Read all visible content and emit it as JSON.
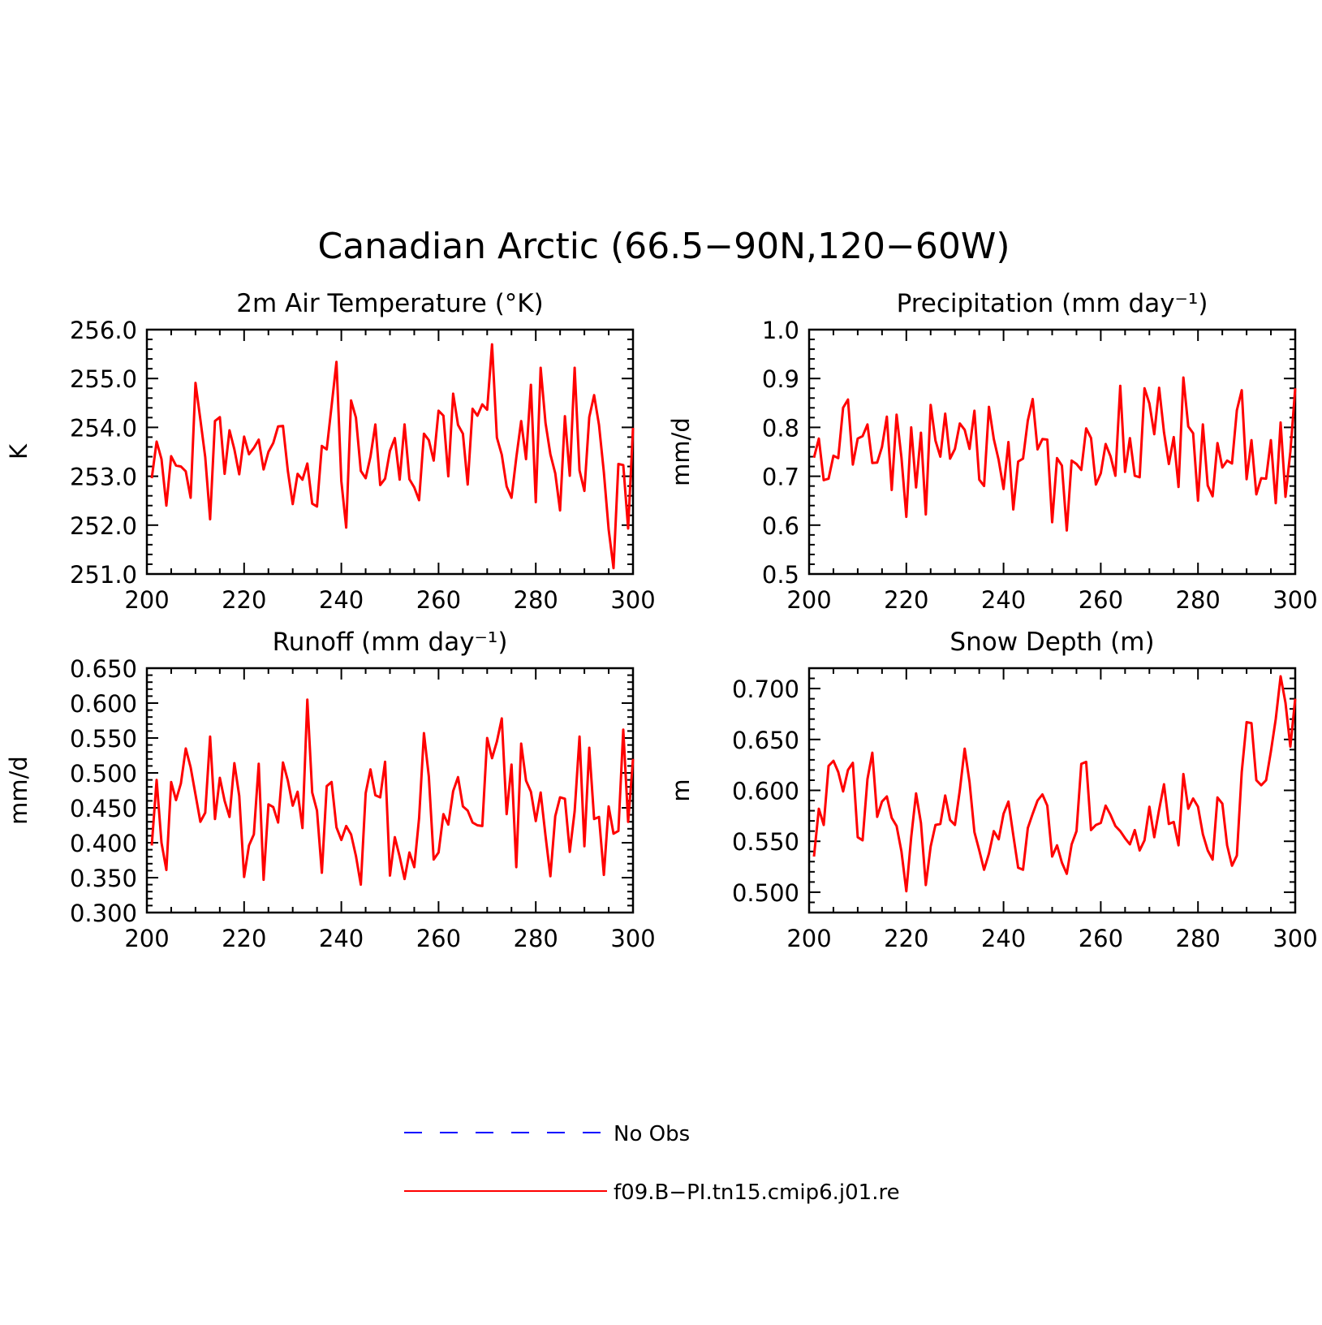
{
  "figure_title": "Canadian Arctic (66.5−90N,120−60W)",
  "colors": {
    "model": "#ff0000",
    "obs": "#0000ff",
    "axis": "#000000"
  },
  "legend": {
    "obs_label": "No Obs",
    "model_label": "f09.B−PI.tn15.cmip6.j01.re"
  },
  "chart_data": [
    {
      "type": "line",
      "title": "2m Air Temperature (°K)",
      "xlabel": "",
      "ylabel": "K",
      "xlim": [
        200,
        300
      ],
      "ylim": [
        251.0,
        256.0
      ],
      "x_ticks": [
        "200",
        "220",
        "240",
        "260",
        "280",
        "300"
      ],
      "y_ticks": [
        "251.0",
        "252.0",
        "253.0",
        "254.0",
        "255.0",
        "256.0"
      ],
      "x_start": 201,
      "series": [
        {
          "name": "f09.B−PI.tn15.cmip6.j01.re",
          "values": [
            252.96,
            253.71,
            253.35,
            252.4,
            253.41,
            253.22,
            253.2,
            253.1,
            252.56,
            254.91,
            254.16,
            253.39,
            252.12,
            254.13,
            254.21,
            253.05,
            253.94,
            253.55,
            253.04,
            253.81,
            253.45,
            253.58,
            253.75,
            253.14,
            253.5,
            253.68,
            254.02,
            254.03,
            253.11,
            252.43,
            253.05,
            252.93,
            253.26,
            252.44,
            252.38,
            253.62,
            253.55,
            254.44,
            255.34,
            252.9,
            251.95,
            254.55,
            254.2,
            253.11,
            252.96,
            253.4,
            254.06,
            252.82,
            252.95,
            253.52,
            253.78,
            252.93,
            254.06,
            252.94,
            252.77,
            252.51,
            253.87,
            253.74,
            253.32,
            254.34,
            254.24,
            253.0,
            254.69,
            254.05,
            253.87,
            252.83,
            254.38,
            254.24,
            254.47,
            254.36,
            255.7,
            253.79,
            253.44,
            252.79,
            252.56,
            253.38,
            254.13,
            253.35,
            254.87,
            252.47,
            255.22,
            254.09,
            253.45,
            253.06,
            252.3,
            254.23,
            253.01,
            255.22,
            253.12,
            252.7,
            254.21,
            254.66,
            254.05,
            253.08,
            251.91,
            251.12,
            253.25,
            253.23,
            251.93,
            253.99
          ]
        }
      ]
    },
    {
      "type": "line",
      "title": "Precipitation (mm day⁻¹)",
      "xlabel": "",
      "ylabel": "mm/d",
      "xlim": [
        200,
        300
      ],
      "ylim": [
        0.5,
        1.0
      ],
      "x_ticks": [
        "200",
        "220",
        "240",
        "260",
        "280",
        "300"
      ],
      "y_ticks": [
        "0.5",
        "0.6",
        "0.7",
        "0.8",
        "0.9",
        "1.0"
      ],
      "x_start": 201,
      "series": [
        {
          "name": "f09.B−PI.tn15.cmip6.j01.re",
          "values": [
            0.738,
            0.777,
            0.692,
            0.695,
            0.742,
            0.737,
            0.84,
            0.857,
            0.724,
            0.777,
            0.782,
            0.806,
            0.727,
            0.728,
            0.76,
            0.822,
            0.672,
            0.826,
            0.738,
            0.617,
            0.8,
            0.677,
            0.789,
            0.622,
            0.846,
            0.773,
            0.74,
            0.828,
            0.736,
            0.756,
            0.808,
            0.795,
            0.756,
            0.834,
            0.693,
            0.68,
            0.842,
            0.776,
            0.733,
            0.674,
            0.77,
            0.632,
            0.73,
            0.736,
            0.814,
            0.858,
            0.755,
            0.776,
            0.775,
            0.606,
            0.737,
            0.722,
            0.589,
            0.732,
            0.725,
            0.713,
            0.798,
            0.778,
            0.683,
            0.706,
            0.766,
            0.741,
            0.701,
            0.885,
            0.709,
            0.778,
            0.701,
            0.698,
            0.88,
            0.849,
            0.786,
            0.881,
            0.79,
            0.725,
            0.78,
            0.678,
            0.902,
            0.802,
            0.788,
            0.65,
            0.806,
            0.681,
            0.659,
            0.768,
            0.718,
            0.732,
            0.726,
            0.835,
            0.876,
            0.694,
            0.774,
            0.663,
            0.696,
            0.695,
            0.774,
            0.645,
            0.81,
            0.658,
            0.75,
            0.88
          ]
        }
      ]
    },
    {
      "type": "line",
      "title": "Runoff (mm day⁻¹)",
      "xlabel": "",
      "ylabel": "mm/d",
      "xlim": [
        200,
        300
      ],
      "ylim": [
        0.3,
        0.65
      ],
      "x_ticks": [
        "200",
        "220",
        "240",
        "260",
        "280",
        "300"
      ],
      "y_ticks": [
        "0.300",
        "0.350",
        "0.400",
        "0.450",
        "0.500",
        "0.550",
        "0.600",
        "0.650"
      ],
      "x_start": 201,
      "series": [
        {
          "name": "f09.B−PI.tn15.cmip6.j01.re",
          "values": [
            0.396,
            0.49,
            0.4,
            0.361,
            0.487,
            0.461,
            0.485,
            0.535,
            0.508,
            0.469,
            0.43,
            0.443,
            0.552,
            0.434,
            0.493,
            0.46,
            0.437,
            0.514,
            0.467,
            0.351,
            0.396,
            0.412,
            0.513,
            0.347,
            0.455,
            0.451,
            0.429,
            0.515,
            0.489,
            0.453,
            0.473,
            0.421,
            0.605,
            0.472,
            0.446,
            0.357,
            0.481,
            0.487,
            0.422,
            0.404,
            0.424,
            0.412,
            0.381,
            0.34,
            0.471,
            0.505,
            0.468,
            0.465,
            0.516,
            0.353,
            0.408,
            0.38,
            0.348,
            0.386,
            0.365,
            0.435,
            0.557,
            0.495,
            0.376,
            0.386,
            0.441,
            0.426,
            0.474,
            0.494,
            0.452,
            0.446,
            0.429,
            0.425,
            0.424,
            0.55,
            0.521,
            0.545,
            0.578,
            0.441,
            0.512,
            0.365,
            0.542,
            0.489,
            0.473,
            0.431,
            0.472,
            0.41,
            0.352,
            0.438,
            0.465,
            0.463,
            0.387,
            0.445,
            0.552,
            0.395,
            0.536,
            0.434,
            0.437,
            0.354,
            0.452,
            0.413,
            0.417,
            0.562,
            0.43,
            0.52
          ]
        }
      ]
    },
    {
      "type": "line",
      "title": "Snow Depth (m)",
      "xlabel": "",
      "ylabel": "m",
      "xlim": [
        200,
        300
      ],
      "ylim": [
        0.48,
        0.72
      ],
      "x_ticks": [
        "200",
        "220",
        "240",
        "260",
        "280",
        "300"
      ],
      "y_ticks": [
        "0.500",
        "0.550",
        "0.600",
        "0.650",
        "0.700"
      ],
      "x_start": 201,
      "series": [
        {
          "name": "f09.B−PI.tn15.cmip6.j01.re",
          "values": [
            0.535,
            0.582,
            0.566,
            0.624,
            0.629,
            0.618,
            0.599,
            0.62,
            0.627,
            0.554,
            0.551,
            0.611,
            0.637,
            0.574,
            0.589,
            0.594,
            0.573,
            0.565,
            0.54,
            0.501,
            0.554,
            0.597,
            0.568,
            0.507,
            0.545,
            0.566,
            0.567,
            0.595,
            0.571,
            0.566,
            0.6,
            0.641,
            0.608,
            0.559,
            0.541,
            0.522,
            0.538,
            0.56,
            0.552,
            0.577,
            0.589,
            0.556,
            0.524,
            0.522,
            0.563,
            0.577,
            0.59,
            0.596,
            0.585,
            0.535,
            0.546,
            0.529,
            0.518,
            0.547,
            0.56,
            0.626,
            0.628,
            0.561,
            0.566,
            0.568,
            0.585,
            0.576,
            0.565,
            0.56,
            0.553,
            0.547,
            0.561,
            0.541,
            0.551,
            0.584,
            0.554,
            0.581,
            0.606,
            0.567,
            0.569,
            0.546,
            0.616,
            0.582,
            0.592,
            0.584,
            0.557,
            0.541,
            0.532,
            0.593,
            0.587,
            0.546,
            0.526,
            0.536,
            0.618,
            0.667,
            0.666,
            0.61,
            0.605,
            0.61,
            0.638,
            0.67,
            0.712,
            0.686,
            0.643,
            0.69
          ]
        }
      ]
    }
  ]
}
